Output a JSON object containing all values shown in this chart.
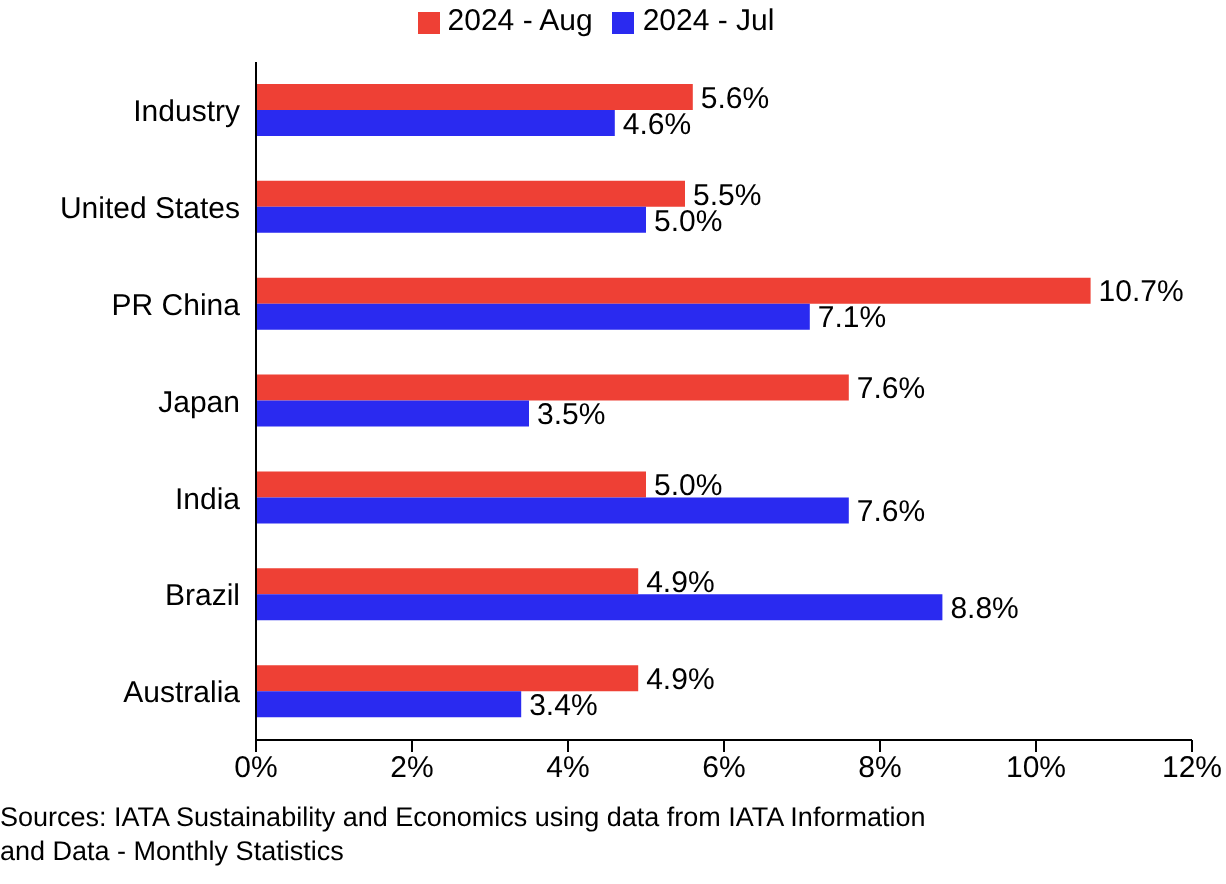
{
  "chart_data": {
    "type": "bar",
    "orientation": "horizontal",
    "categories": [
      "Industry",
      "United States",
      "PR China",
      "Japan",
      "India",
      "Brazil",
      "Australia"
    ],
    "series": [
      {
        "name": "2024 - Aug",
        "color": "#ee4035",
        "values": [
          5.6,
          5.5,
          10.7,
          7.6,
          5.0,
          4.9,
          4.9
        ],
        "value_labels": [
          "5.6%",
          "5.5%",
          "10.7%",
          "7.6%",
          "5.0%",
          "4.9%",
          "4.9%"
        ]
      },
      {
        "name": "2024 - Jul",
        "color": "#2a2af0",
        "values": [
          4.6,
          5.0,
          7.1,
          3.5,
          7.6,
          8.8,
          3.4
        ],
        "value_labels": [
          "4.6%",
          "5.0%",
          "7.1%",
          "3.5%",
          "7.6%",
          "8.8%",
          "3.4%"
        ]
      }
    ],
    "xlim": [
      0,
      12
    ],
    "xticks": [
      {
        "value": 0,
        "label": "0%"
      },
      {
        "value": 2,
        "label": "2%"
      },
      {
        "value": 4,
        "label": "4%"
      },
      {
        "value": 6,
        "label": "6%"
      },
      {
        "value": 8,
        "label": "8%"
      },
      {
        "value": 10,
        "label": "10%"
      },
      {
        "value": 12,
        "label": "12%"
      }
    ],
    "grid": false,
    "legend": "top",
    "annotations": [
      "Sources: IATA Sustainability and Economics using data from IATA Information and Data - Monthly Statistics"
    ]
  }
}
